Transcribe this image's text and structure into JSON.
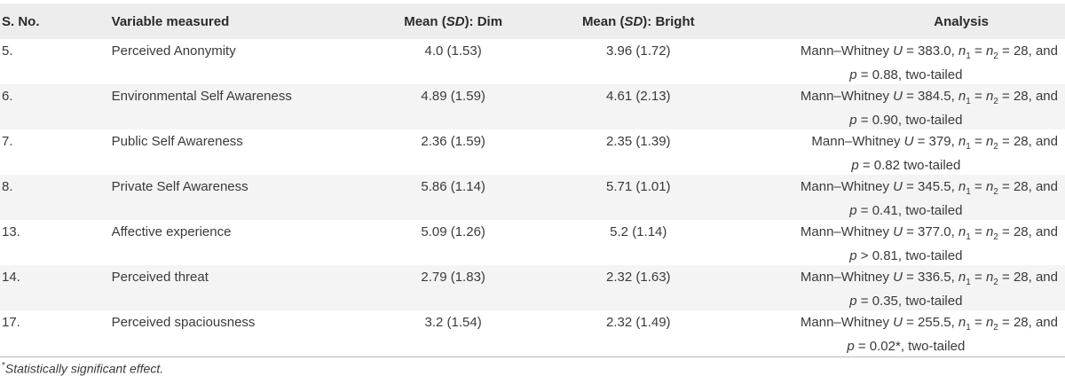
{
  "table": {
    "headers": {
      "sno": "S. No.",
      "variable": "Variable measured",
      "dim_pre": "Mean (",
      "dim_sd": "SD",
      "dim_post": "): Dim",
      "bright_pre": "Mean (",
      "bright_sd": "SD",
      "bright_post": "): Bright",
      "analysis": "Analysis"
    },
    "rows": [
      {
        "sno": "5.",
        "variable": "Perceived Anonymity",
        "dim": "4.0 (1.53)",
        "bright": "3.96 (1.72)",
        "analysis_line1": "Mann–Whitney U = 383.0, n1 = n2 = 28, and",
        "analysis_line2": "p = 0.88, two-tailed"
      },
      {
        "sno": "6.",
        "variable": "Environmental Self Awareness",
        "dim": "4.89 (1.59)",
        "bright": "4.61 (2.13)",
        "analysis_line1": "Mann–Whitney U = 384.5, n1 = n2 = 28, and",
        "analysis_line2": "p = 0.90, two-tailed"
      },
      {
        "sno": "7.",
        "variable": "Public Self Awareness",
        "dim": "2.36 (1.59)",
        "bright": "2.35 (1.39)",
        "analysis_line1": "Mann–Whitney U = 379, n1 = n2 = 28, and",
        "analysis_line2": "p = 0.82 two-tailed"
      },
      {
        "sno": "8.",
        "variable": "Private Self Awareness",
        "dim": "5.86 (1.14)",
        "bright": "5.71 (1.01)",
        "analysis_line1": "Mann–Whitney U = 345.5, n1 = n2 = 28, and",
        "analysis_line2": "p = 0.41, two-tailed"
      },
      {
        "sno": "13.",
        "variable": "Affective experience",
        "dim": "5.09 (1.26)",
        "bright": "5.2 (1.14)",
        "analysis_line1": "Mann–Whitney U = 377.0, n1 = n2 = 28, and",
        "analysis_line2": "p > 0.81, two-tailed"
      },
      {
        "sno": "14.",
        "variable": "Perceived threat",
        "dim": "2.79 (1.83)",
        "bright": "2.32 (1.63)",
        "analysis_line1": "Mann–Whitney U = 336.5, n1 = n2 = 28, and",
        "analysis_line2": "p = 0.35, two-tailed"
      },
      {
        "sno": "17.",
        "variable": "Perceived spaciousness",
        "dim": "3.2 (1.54)",
        "bright": "2.32 (1.49)",
        "analysis_line1": "Mann–Whitney U = 255.5, n1 = n2 = 28, and",
        "analysis_line2": "p = 0.02*, two-tailed"
      }
    ]
  },
  "footnote": {
    "marker": "*",
    "text": "Statistically significant effect."
  }
}
